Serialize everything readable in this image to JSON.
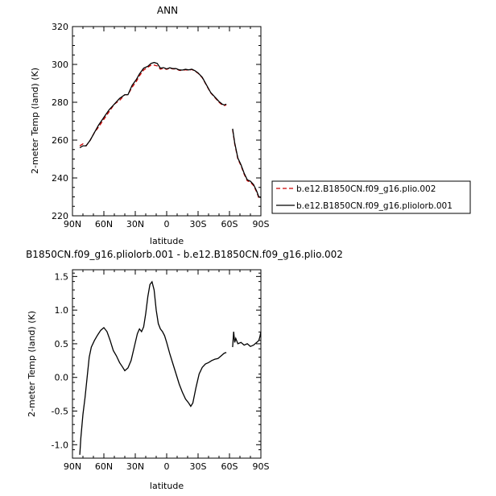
{
  "chart_data": [
    {
      "type": "line",
      "title": "ANN",
      "xlabel": "latitude",
      "ylabel": "2-meter Temp (land) (K)",
      "xlim": [
        90,
        -90
      ],
      "ylim": [
        220,
        320
      ],
      "xticks": [
        90,
        60,
        30,
        0,
        -30,
        -60,
        -90
      ],
      "xtick_labels": [
        "90N",
        "60N",
        "30N",
        "0",
        "30S",
        "60S",
        "90S"
      ],
      "yticks": [
        220,
        240,
        260,
        280,
        300,
        320
      ],
      "ytick_labels": [
        "220",
        "240",
        "260",
        "280",
        "300",
        "320"
      ],
      "legend_position": "right",
      "series": [
        {
          "name": "b.e12.B1850CN.f09_g16.plio.002",
          "color": "#cc0000",
          "dash": "dashed",
          "segments": [
            [
              [
                83,
                257
              ],
              [
                80,
                258
              ],
              [
                77,
                257
              ],
              [
                73,
                260
              ],
              [
                69,
                264
              ],
              [
                65,
                267
              ],
              [
                60,
                271
              ],
              [
                55,
                275
              ],
              [
                50,
                279
              ],
              [
                45,
                281
              ],
              [
                40,
                284
              ],
              [
                37,
                284
              ],
              [
                33,
                288
              ],
              [
                29,
                291
              ],
              [
                26,
                294
              ],
              [
                22,
                297
              ],
              [
                18,
                298.5
              ],
              [
                15,
                299.6
              ],
              [
                12,
                299.6
              ],
              [
                9,
                299.2
              ],
              [
                6,
                297.5
              ],
              [
                3,
                297.9
              ],
              [
                0,
                297.4
              ],
              [
                -3,
                298.0
              ],
              [
                -6,
                297.6
              ],
              [
                -9,
                297.6
              ],
              [
                -12,
                296.9
              ],
              [
                -15,
                296.8
              ],
              [
                -18,
                297.2
              ],
              [
                -21,
                296.9
              ],
              [
                -24,
                297.3
              ],
              [
                -27,
                296.5
              ],
              [
                -30,
                295.3
              ],
              [
                -34,
                293.0
              ],
              [
                -38,
                289.0
              ],
              [
                -42,
                285.0
              ],
              [
                -46,
                282.5
              ],
              [
                -50,
                280.0
              ],
              [
                -53,
                278.6
              ],
              [
                -55,
                278.2
              ],
              [
                -57,
                278.6
              ]
            ],
            [
              [
                -63,
                265.5
              ],
              [
                -65,
                258.0
              ],
              [
                -68,
                250.0
              ],
              [
                -71,
                246.5
              ],
              [
                -74,
                242.0
              ],
              [
                -77,
                238.5
              ],
              [
                -80,
                237.8
              ],
              [
                -83,
                236.0
              ],
              [
                -86,
                232.5
              ],
              [
                -88,
                229.5
              ],
              [
                -90,
                229.0
              ]
            ]
          ]
        },
        {
          "name": "b.e12.B1850CN.f09_g16.pliolorb.001",
          "color": "#000000",
          "dash": "solid",
          "segments": [
            [
              [
                83,
                256
              ],
              [
                80,
                257
              ],
              [
                77,
                257
              ],
              [
                73,
                260
              ],
              [
                69,
                264
              ],
              [
                65,
                268
              ],
              [
                60,
                272
              ],
              [
                55,
                276
              ],
              [
                50,
                279
              ],
              [
                45,
                282
              ],
              [
                40,
                284
              ],
              [
                37,
                284
              ],
              [
                33,
                289
              ],
              [
                29,
                292
              ],
              [
                26,
                295
              ],
              [
                22,
                298
              ],
              [
                18,
                299
              ],
              [
                15,
                300.5
              ],
              [
                12,
                301
              ],
              [
                9,
                300.5
              ],
              [
                6,
                298.0
              ],
              [
                3,
                298.3
              ],
              [
                0,
                297.6
              ],
              [
                -3,
                298.2
              ],
              [
                -6,
                297.8
              ],
              [
                -9,
                297.8
              ],
              [
                -12,
                297.1
              ],
              [
                -15,
                297.0
              ],
              [
                -18,
                297.4
              ],
              [
                -21,
                297.1
              ],
              [
                -24,
                297.5
              ],
              [
                -27,
                296.7
              ],
              [
                -30,
                295.5
              ],
              [
                -34,
                293.2
              ],
              [
                -38,
                289.2
              ],
              [
                -42,
                285.2
              ],
              [
                -46,
                282.8
              ],
              [
                -50,
                280.4
              ],
              [
                -53,
                279.0
              ],
              [
                -55,
                278.6
              ],
              [
                -57,
                279.0
              ]
            ],
            [
              [
                -63,
                266.0
              ],
              [
                -65,
                258.5
              ],
              [
                -68,
                250.5
              ],
              [
                -71,
                247.0
              ],
              [
                -74,
                242.5
              ],
              [
                -77,
                239.0
              ],
              [
                -80,
                238.3
              ],
              [
                -83,
                236.5
              ],
              [
                -86,
                233.0
              ],
              [
                -88,
                230.0
              ],
              [
                -90,
                229.6
              ]
            ]
          ]
        }
      ]
    },
    {
      "type": "line",
      "title": "B1850CN.f09_g16.pliolorb.001 - b.e12.B1850CN.f09_g16.plio.002",
      "xlabel": "latitude",
      "ylabel": "2-meter Temp (land) (K)",
      "xlim": [
        90,
        -90
      ],
      "ylim": [
        -1.2,
        1.6
      ],
      "xticks": [
        90,
        60,
        30,
        0,
        -30,
        -60,
        -90
      ],
      "xtick_labels": [
        "90N",
        "60N",
        "30N",
        "0",
        "30S",
        "60S",
        "90S"
      ],
      "yticks": [
        -1.0,
        -0.5,
        0.0,
        0.5,
        1.0,
        1.5
      ],
      "ytick_labels": [
        "-1.0",
        "-0.5",
        "0.0",
        "0.5",
        "1.0",
        "1.5"
      ],
      "series": [
        {
          "color": "#000000",
          "dash": "solid",
          "segments": [
            [
              [
                83,
                -1.15
              ],
              [
                82,
                -0.9
              ],
              [
                80,
                -0.55
              ],
              [
                78,
                -0.3
              ],
              [
                76,
                0.0
              ],
              [
                74,
                0.3
              ],
              [
                72,
                0.45
              ],
              [
                69,
                0.55
              ],
              [
                66,
                0.63
              ],
              [
                63,
                0.7
              ],
              [
                60,
                0.74
              ],
              [
                57,
                0.68
              ],
              [
                54,
                0.55
              ],
              [
                51,
                0.4
              ],
              [
                48,
                0.32
              ],
              [
                45,
                0.22
              ],
              [
                42,
                0.15
              ],
              [
                40,
                0.1
              ],
              [
                37,
                0.14
              ],
              [
                34,
                0.25
              ],
              [
                31,
                0.45
              ],
              [
                28,
                0.65
              ],
              [
                26,
                0.72
              ],
              [
                24,
                0.68
              ],
              [
                22,
                0.75
              ],
              [
                20,
                0.95
              ],
              [
                18,
                1.2
              ],
              [
                16,
                1.38
              ],
              [
                14,
                1.42
              ],
              [
                12,
                1.3
              ],
              [
                10,
                1.0
              ],
              [
                8,
                0.8
              ],
              [
                6,
                0.72
              ],
              [
                4,
                0.68
              ],
              [
                2,
                0.62
              ],
              [
                0,
                0.52
              ],
              [
                -3,
                0.35
              ],
              [
                -6,
                0.2
              ],
              [
                -9,
                0.05
              ],
              [
                -12,
                -0.1
              ],
              [
                -15,
                -0.22
              ],
              [
                -18,
                -0.32
              ],
              [
                -21,
                -0.38
              ],
              [
                -23,
                -0.43
              ],
              [
                -25,
                -0.38
              ],
              [
                -28,
                -0.15
              ],
              [
                -31,
                0.05
              ],
              [
                -34,
                0.15
              ],
              [
                -37,
                0.2
              ],
              [
                -40,
                0.22
              ],
              [
                -43,
                0.25
              ],
              [
                -46,
                0.27
              ],
              [
                -49,
                0.28
              ],
              [
                -52,
                0.32
              ],
              [
                -55,
                0.36
              ],
              [
                -57,
                0.37
              ]
            ],
            [
              [
                -63,
                0.45
              ],
              [
                -64,
                0.68
              ],
              [
                -65,
                0.52
              ],
              [
                -66,
                0.58
              ],
              [
                -68,
                0.5
              ],
              [
                -71,
                0.52
              ],
              [
                -74,
                0.48
              ],
              [
                -77,
                0.5
              ],
              [
                -80,
                0.46
              ],
              [
                -83,
                0.48
              ],
              [
                -86,
                0.52
              ],
              [
                -88,
                0.55
              ],
              [
                -89,
                0.6
              ],
              [
                -90,
                0.68
              ]
            ]
          ]
        }
      ]
    }
  ]
}
